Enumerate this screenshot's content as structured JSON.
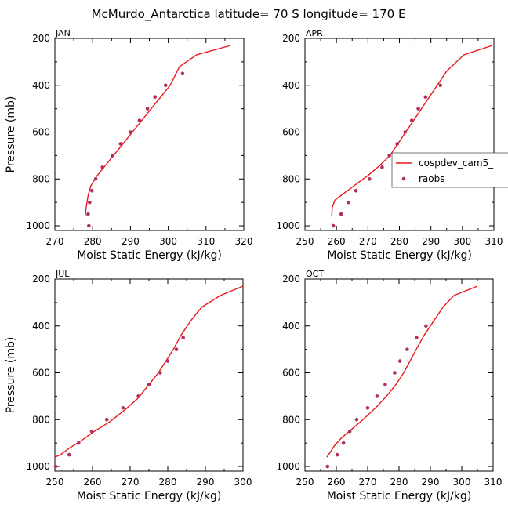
{
  "figure": {
    "title": "McMurdo_Antarctica  latitude= 70 S longitude= 170 E"
  },
  "colors": {
    "model": "#e8191c",
    "obs": "#b03060",
    "axis": "#000000"
  },
  "chart_data": [
    {
      "type": "line",
      "panel": "JAN",
      "xlabel": "Moist Static Energy (kJ/kg)",
      "ylabel": "Pressure (mb)",
      "xlim": [
        270,
        320
      ],
      "ylim": [
        1020,
        200
      ],
      "xticks": [
        270,
        280,
        290,
        300,
        310,
        320
      ],
      "yticks": [
        200,
        400,
        600,
        800,
        1000
      ],
      "series": [
        {
          "name": "cospdev_cam5_",
          "style": "line",
          "x": [
            278.0,
            278.3,
            278.8,
            279.5,
            281.0,
            283.0,
            285.5,
            288.0,
            290.5,
            293.0,
            295.5,
            298.0,
            300.5,
            303.0,
            307.5,
            316.5
          ],
          "y": [
            960,
            920,
            870,
            830,
            790,
            750,
            700,
            650,
            600,
            550,
            500,
            450,
            400,
            320,
            270,
            230
          ]
        },
        {
          "name": "raobs",
          "style": "markers",
          "x": [
            279.0,
            278.8,
            279.2,
            279.8,
            280.8,
            282.6,
            285.2,
            287.4,
            290.0,
            292.4,
            294.5,
            296.5,
            299.3,
            303.8
          ],
          "y": [
            1000,
            950,
            900,
            850,
            800,
            750,
            700,
            650,
            600,
            550,
            500,
            450,
            400,
            350
          ]
        }
      ]
    },
    {
      "type": "line",
      "panel": "APR",
      "xlabel": "Moist Static Energy (kJ/kg)",
      "ylabel": "",
      "xlim": [
        250,
        310
      ],
      "ylim": [
        1020,
        200
      ],
      "xticks": [
        250,
        260,
        270,
        280,
        290,
        300,
        310
      ],
      "yticks": [
        200,
        400,
        600,
        800,
        1000
      ],
      "legend": {
        "placement": "right",
        "entries": [
          "cospdev_cam5_",
          "raobs"
        ]
      },
      "series": [
        {
          "name": "cospdev_cam5_",
          "style": "line",
          "x": [
            258.5,
            258.7,
            259.5,
            262.5,
            266.5,
            270.5,
            274.0,
            277.0,
            279.5,
            282.0,
            284.5,
            287.0,
            290.0,
            292.5,
            295.0,
            300.5,
            309.5
          ],
          "y": [
            960,
            920,
            890,
            860,
            820,
            780,
            740,
            700,
            650,
            600,
            550,
            500,
            440,
            390,
            340,
            270,
            230
          ]
        },
        {
          "name": "raobs",
          "style": "markers",
          "x": [
            259.0,
            261.5,
            263.8,
            266.2,
            270.5,
            274.5,
            276.8,
            279.3,
            281.8,
            283.9,
            286.0,
            288.3,
            293.0
          ],
          "y": [
            1000,
            950,
            900,
            850,
            800,
            750,
            700,
            650,
            600,
            550,
            500,
            450,
            400
          ]
        }
      ]
    },
    {
      "type": "line",
      "panel": "JUL",
      "xlabel": "Moist Static Energy (kJ/kg)",
      "ylabel": "Pressure (mb)",
      "xlim": [
        250,
        300
      ],
      "ylim": [
        1020,
        200
      ],
      "xticks": [
        250,
        260,
        270,
        280,
        290,
        300
      ],
      "yticks": [
        200,
        400,
        600,
        800,
        1000
      ],
      "series": [
        {
          "name": "cospdev_cam5_",
          "style": "line",
          "x": [
            250.0,
            251.5,
            254.0,
            257.0,
            260.5,
            264.5,
            268.5,
            272.0,
            275.0,
            277.5,
            279.5,
            281.5,
            283.5,
            286.0,
            289.0,
            294.0,
            300.0
          ],
          "y": [
            960,
            950,
            920,
            890,
            850,
            810,
            760,
            710,
            650,
            600,
            550,
            500,
            440,
            380,
            320,
            270,
            230
          ]
        },
        {
          "name": "raobs",
          "style": "markers",
          "x": [
            250.2,
            253.8,
            256.3,
            259.8,
            263.8,
            268.1,
            272.2,
            275.0,
            278.0,
            280.0,
            282.3,
            284.1
          ],
          "y": [
            1000,
            950,
            900,
            850,
            800,
            750,
            700,
            650,
            600,
            550,
            500,
            450
          ]
        }
      ]
    },
    {
      "type": "line",
      "panel": "OCT",
      "xlabel": "Moist Static Energy (kJ/kg)",
      "ylabel": "",
      "xlim": [
        250,
        310
      ],
      "ylim": [
        1020,
        200
      ],
      "xticks": [
        250,
        260,
        270,
        280,
        290,
        300,
        310
      ],
      "yticks": [
        200,
        400,
        600,
        800,
        1000
      ],
      "series": [
        {
          "name": "cospdev_cam5_",
          "style": "line",
          "x": [
            257.0,
            258.0,
            259.5,
            261.5,
            265.0,
            268.5,
            272.5,
            276.0,
            279.0,
            281.5,
            283.5,
            285.5,
            288.0,
            291.0,
            294.0,
            297.5,
            305.0
          ],
          "y": [
            960,
            940,
            910,
            880,
            840,
            800,
            750,
            700,
            650,
            600,
            550,
            500,
            440,
            380,
            320,
            270,
            230
          ]
        },
        {
          "name": "raobs",
          "style": "markers",
          "x": [
            257.2,
            260.3,
            262.3,
            264.3,
            266.5,
            270.0,
            273.0,
            275.6,
            278.6,
            280.3,
            282.6,
            285.6,
            288.6
          ],
          "y": [
            1000,
            950,
            900,
            850,
            800,
            750,
            700,
            650,
            600,
            550,
            500,
            450,
            400
          ]
        }
      ]
    }
  ]
}
